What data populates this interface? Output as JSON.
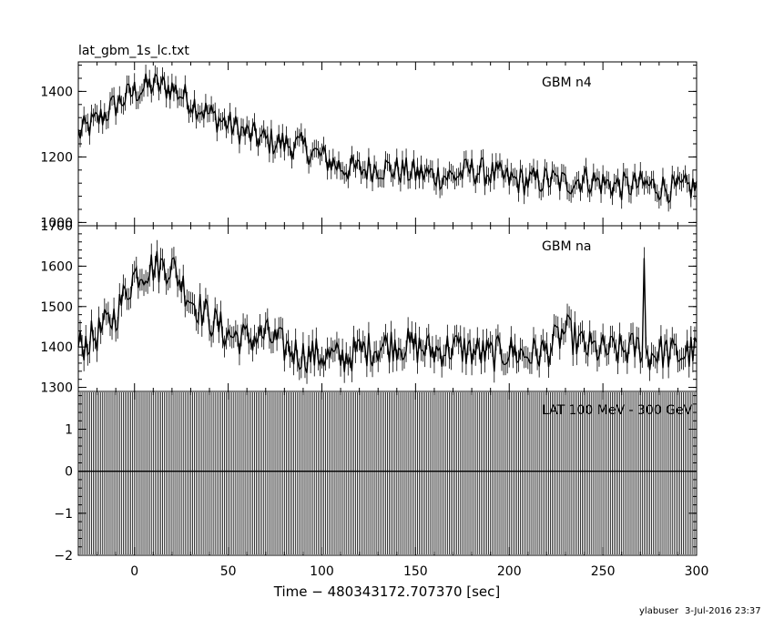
{
  "file_title": "lat_gbm_1s_lc.txt",
  "footer": {
    "user": "ylabuser",
    "date": "3-Jul-2016 23:37"
  },
  "colors": {
    "line": "#000000",
    "background": "#ffffff"
  },
  "chart_data": [
    {
      "type": "line",
      "panel_label": "GBM n4",
      "xlim": [
        -30,
        300
      ],
      "ylim": [
        990,
        1490
      ],
      "yticks": [
        1000,
        1200,
        1400
      ],
      "ytick_labels": [
        "1000",
        "1200",
        "1400"
      ],
      "series": [
        {
          "x": [
            -30,
            -20,
            -10,
            0,
            10,
            20,
            30,
            40,
            50,
            60,
            70,
            80,
            90,
            100,
            110,
            120,
            130,
            140,
            150,
            160,
            170,
            180,
            190,
            200,
            210,
            220,
            230,
            240,
            250,
            260,
            270,
            280,
            290,
            300
          ],
          "y": [
            1270,
            1310,
            1360,
            1400,
            1420,
            1410,
            1370,
            1330,
            1300,
            1270,
            1250,
            1240,
            1230,
            1200,
            1170,
            1160,
            1170,
            1160,
            1150,
            1145,
            1140,
            1160,
            1150,
            1130,
            1125,
            1130,
            1120,
            1135,
            1120,
            1110,
            1115,
            1110,
            1100,
            1110
          ]
        }
      ]
    },
    {
      "type": "line",
      "panel_label": "GBM na",
      "xlim": [
        -30,
        300
      ],
      "ylim": [
        1290,
        1700
      ],
      "yticks": [
        1300,
        1400,
        1500,
        1600,
        1700
      ],
      "ytick_labels": [
        "1300",
        "1400",
        "1500",
        "1600",
        "1700"
      ],
      "series": [
        {
          "x": [
            -30,
            -20,
            -10,
            0,
            10,
            20,
            30,
            40,
            50,
            60,
            70,
            80,
            90,
            100,
            110,
            120,
            130,
            140,
            150,
            160,
            170,
            180,
            190,
            200,
            210,
            220,
            230,
            240,
            250,
            260,
            270,
            275,
            280,
            290,
            300
          ],
          "y": [
            1400,
            1430,
            1480,
            1580,
            1600,
            1600,
            1520,
            1470,
            1430,
            1420,
            1430,
            1400,
            1380,
            1380,
            1370,
            1390,
            1400,
            1410,
            1400,
            1390,
            1400,
            1390,
            1380,
            1390,
            1380,
            1390,
            1440,
            1400,
            1390,
            1390,
            1400,
            1380,
            1390,
            1380,
            1390
          ]
        }
      ],
      "spike": {
        "x": 272,
        "y": 1620
      }
    },
    {
      "type": "line",
      "panel_label": "LAT 100 MeV - 300 GeV",
      "xlim": [
        -30,
        300
      ],
      "ylim": [
        -2,
        1.9
      ],
      "yticks": [
        -2,
        -1,
        0,
        1
      ],
      "ytick_labels": [
        "−2",
        "−1",
        "0",
        "1"
      ],
      "series": [
        {
          "x": [
            -30,
            300
          ],
          "y": [
            0,
            0
          ]
        }
      ],
      "xticks": [
        0,
        50,
        100,
        150,
        200,
        250,
        300
      ],
      "xtick_labels": [
        "0",
        "50",
        "100",
        "150",
        "200",
        "250",
        "300"
      ],
      "xlabel": "Time − 480343172.707370 [sec]"
    }
  ]
}
